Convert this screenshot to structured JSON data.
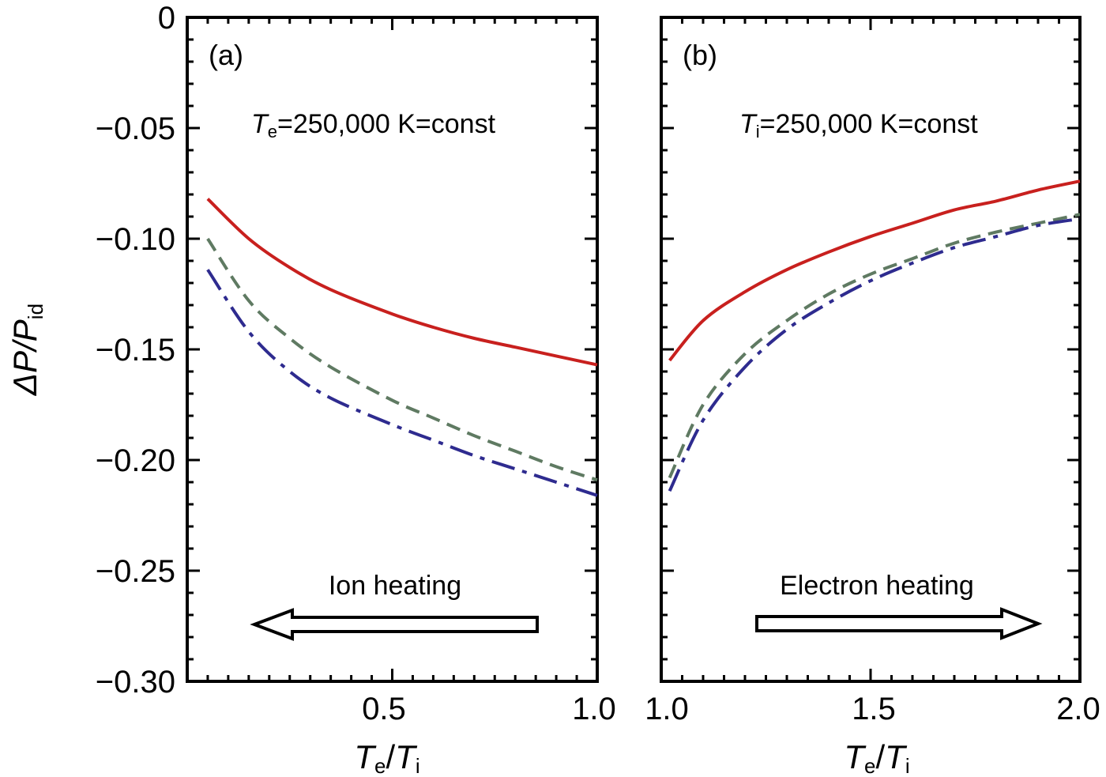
{
  "y_axis": {
    "label_main": "ΔP/P",
    "label_sub": "id",
    "ticks": [
      "0",
      "−0.05",
      "−0.10",
      "−0.15",
      "−0.20",
      "−0.25",
      "−0.30"
    ]
  },
  "x_axis": {
    "label_T1": "T",
    "label_s1": "e",
    "label_slash": "/",
    "label_T2": "T",
    "label_s2": "i"
  },
  "panels": [
    {
      "tag": "(a)",
      "condition_T": "T",
      "condition_sub": "e",
      "condition_text": "=250,000 K=const",
      "arrow_text": "Ion heating",
      "x_ticks": [
        "0.5",
        "1.0"
      ]
    },
    {
      "tag": "(b)",
      "condition_T": "T",
      "condition_sub": "i",
      "condition_text": "=250,000 K=const",
      "arrow_text": "Electron heating",
      "x_ticks": [
        "1.0",
        "1.5",
        "2.0"
      ]
    }
  ],
  "colors": {
    "solid": "#c8201e",
    "dashed": "#5f7a62",
    "dash_dot": "#2e2b8f"
  },
  "chart_data": [
    {
      "type": "line",
      "panel": "(a)",
      "x_range": [
        0.0,
        1.0
      ],
      "ylim": [
        -0.3,
        0.0
      ],
      "series": [
        {
          "style": "solid",
          "x": [
            0.05,
            0.15,
            0.25,
            0.35,
            0.5,
            0.6,
            0.7,
            0.8,
            0.9,
            1.0
          ],
          "y": [
            -0.082,
            -0.1,
            -0.113,
            -0.123,
            -0.134,
            -0.14,
            -0.145,
            -0.149,
            -0.153,
            -0.157
          ]
        },
        {
          "style": "dashed",
          "x": [
            0.05,
            0.15,
            0.25,
            0.35,
            0.5,
            0.6,
            0.7,
            0.8,
            0.9,
            1.0
          ],
          "y": [
            -0.1,
            -0.128,
            -0.145,
            -0.158,
            -0.173,
            -0.181,
            -0.189,
            -0.196,
            -0.203,
            -0.209
          ]
        },
        {
          "style": "dash-dot",
          "x": [
            0.05,
            0.15,
            0.25,
            0.35,
            0.5,
            0.6,
            0.7,
            0.8,
            0.9,
            1.0
          ],
          "y": [
            -0.114,
            -0.142,
            -0.16,
            -0.172,
            -0.184,
            -0.191,
            -0.198,
            -0.204,
            -0.21,
            -0.216
          ]
        }
      ]
    },
    {
      "type": "line",
      "panel": "(b)",
      "x_range": [
        1.0,
        2.0
      ],
      "ylim": [
        -0.3,
        0.0
      ],
      "series": [
        {
          "style": "solid",
          "x": [
            1.02,
            1.1,
            1.2,
            1.3,
            1.4,
            1.5,
            1.6,
            1.7,
            1.8,
            1.9,
            2.0
          ],
          "y": [
            -0.155,
            -0.137,
            -0.124,
            -0.114,
            -0.106,
            -0.099,
            -0.093,
            -0.087,
            -0.083,
            -0.078,
            -0.074
          ]
        },
        {
          "style": "dashed",
          "x": [
            1.02,
            1.1,
            1.2,
            1.3,
            1.4,
            1.5,
            1.6,
            1.7,
            1.8,
            1.9,
            2.0
          ],
          "y": [
            -0.208,
            -0.175,
            -0.152,
            -0.137,
            -0.125,
            -0.116,
            -0.109,
            -0.102,
            -0.097,
            -0.093,
            -0.089
          ]
        },
        {
          "style": "dash-dot",
          "x": [
            1.02,
            1.1,
            1.2,
            1.3,
            1.4,
            1.5,
            1.6,
            1.7,
            1.8,
            1.9,
            2.0
          ],
          "y": [
            -0.214,
            -0.182,
            -0.158,
            -0.141,
            -0.129,
            -0.119,
            -0.111,
            -0.104,
            -0.099,
            -0.094,
            -0.091
          ]
        }
      ]
    }
  ]
}
